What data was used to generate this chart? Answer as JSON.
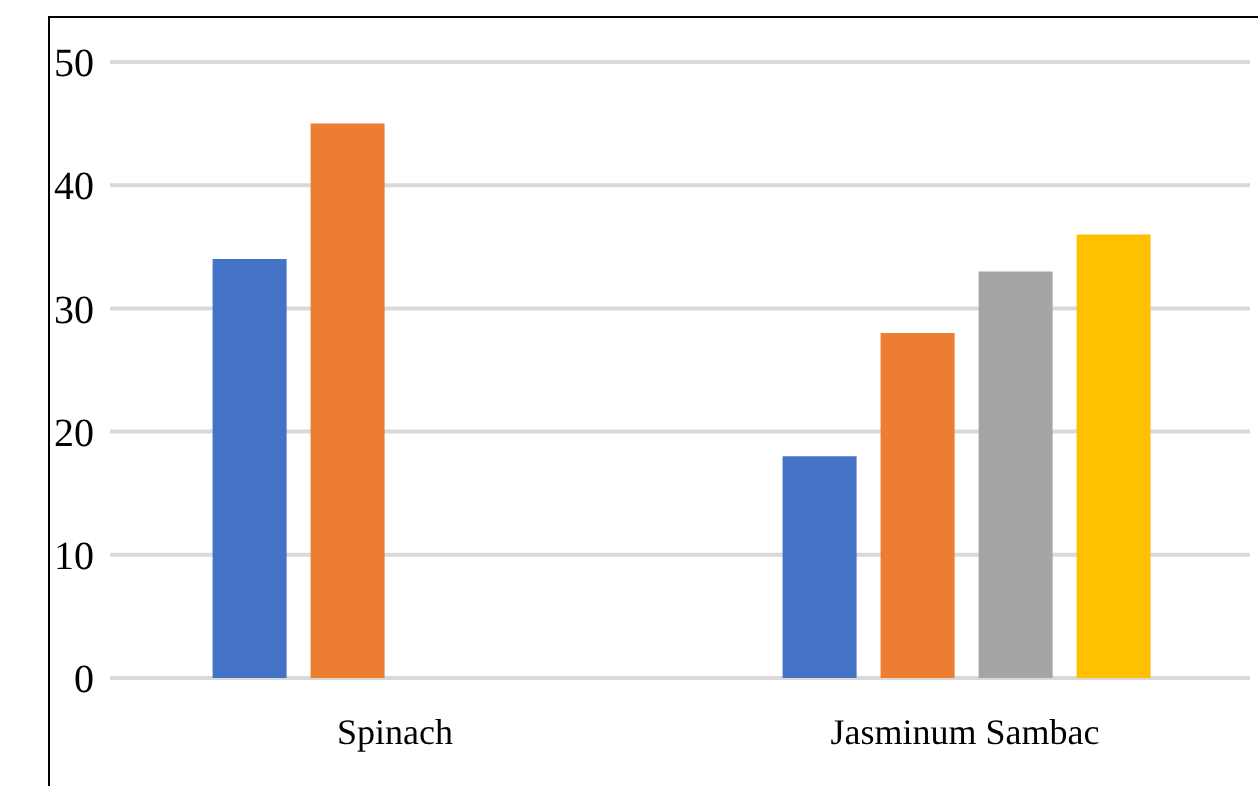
{
  "chart_data": {
    "type": "bar",
    "categories": [
      "Spinach",
      "Jasminum Sambac"
    ],
    "series": [
      {
        "color": "#4472c4",
        "values": [
          34,
          18
        ]
      },
      {
        "color": "#ed7d31",
        "values": [
          45,
          28
        ]
      },
      {
        "color": "#a5a5a5",
        "values": [
          null,
          33
        ]
      },
      {
        "color": "#ffc000",
        "values": [
          null,
          36
        ]
      }
    ],
    "ylim": [
      0,
      50
    ],
    "yticks": [
      0,
      10,
      20,
      30,
      40,
      50
    ],
    "grid": "y",
    "legend": false
  }
}
